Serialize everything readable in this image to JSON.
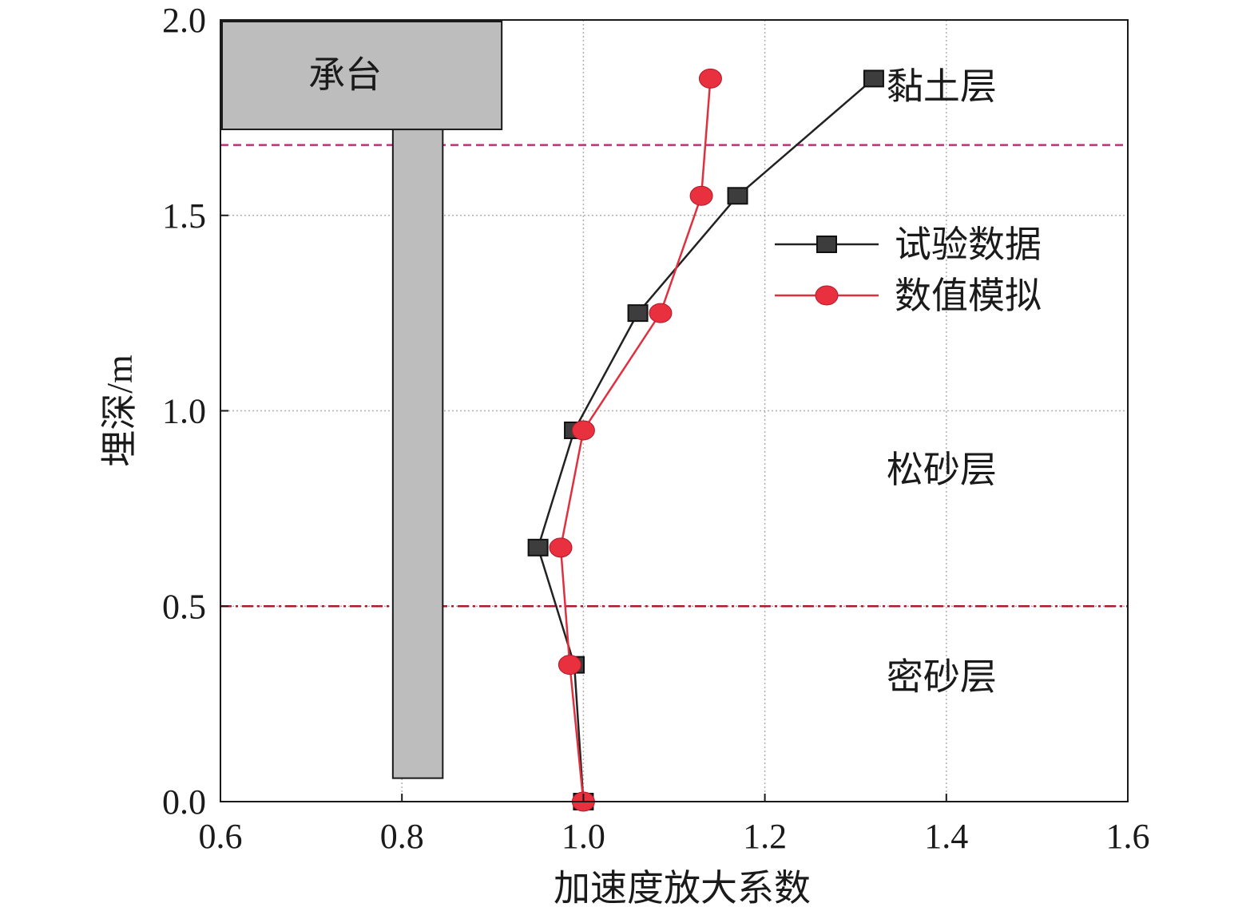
{
  "chart_data": {
    "type": "line",
    "title": "",
    "xlabel": "加速度放大系数",
    "ylabel": "埋深/m",
    "xlim": [
      0.6,
      1.6
    ],
    "ylim": [
      0.0,
      2.0
    ],
    "xticks": [
      "0.6",
      "0.8",
      "1.0",
      "1.2",
      "1.4",
      "1.6"
    ],
    "yticks": [
      "0.0",
      "0.5",
      "1.0",
      "1.5",
      "2.0"
    ],
    "grid": "dotted",
    "legend_position": "right",
    "series": [
      {
        "name": "试验数据",
        "marker": "square",
        "color": "#222222",
        "marker_color": "#3d3d3d",
        "points": [
          {
            "x": 1.32,
            "y": 1.85
          },
          {
            "x": 1.17,
            "y": 1.55
          },
          {
            "x": 1.06,
            "y": 1.25
          },
          {
            "x": 0.99,
            "y": 0.95
          },
          {
            "x": 0.95,
            "y": 0.65
          },
          {
            "x": 0.99,
            "y": 0.35
          },
          {
            "x": 1.0,
            "y": 0.0
          }
        ]
      },
      {
        "name": "数值模拟",
        "marker": "circle",
        "color": "#e0303f",
        "marker_color": "#e8303f",
        "points": [
          {
            "x": 1.14,
            "y": 1.85
          },
          {
            "x": 1.13,
            "y": 1.55
          },
          {
            "x": 1.085,
            "y": 1.25
          },
          {
            "x": 1.0,
            "y": 0.95
          },
          {
            "x": 0.975,
            "y": 0.65
          },
          {
            "x": 0.985,
            "y": 0.35
          },
          {
            "x": 1.0,
            "y": 0.0
          }
        ]
      }
    ],
    "reference_lines": [
      {
        "y": 1.68,
        "style": "dashed",
        "color": "#c0307a"
      },
      {
        "y": 0.5,
        "style": "dash-dot",
        "color": "#b01a24"
      }
    ],
    "structures": {
      "cap": {
        "label": "承台",
        "x0": 0.6,
        "x1": 0.91,
        "y0": 1.72,
        "y1": 2.0,
        "color": "#bdbdbd"
      },
      "pile": {
        "x0": 0.79,
        "x1": 0.845,
        "y0": 0.06,
        "y1": 1.72,
        "color": "#bdbdbd"
      }
    },
    "zone_labels": [
      {
        "text": "黏土层",
        "x": 1.43,
        "y": 1.83
      },
      {
        "text": "松砂层",
        "x": 1.43,
        "y": 0.85
      },
      {
        "text": "密砂层",
        "x": 1.43,
        "y": 0.32
      }
    ]
  }
}
